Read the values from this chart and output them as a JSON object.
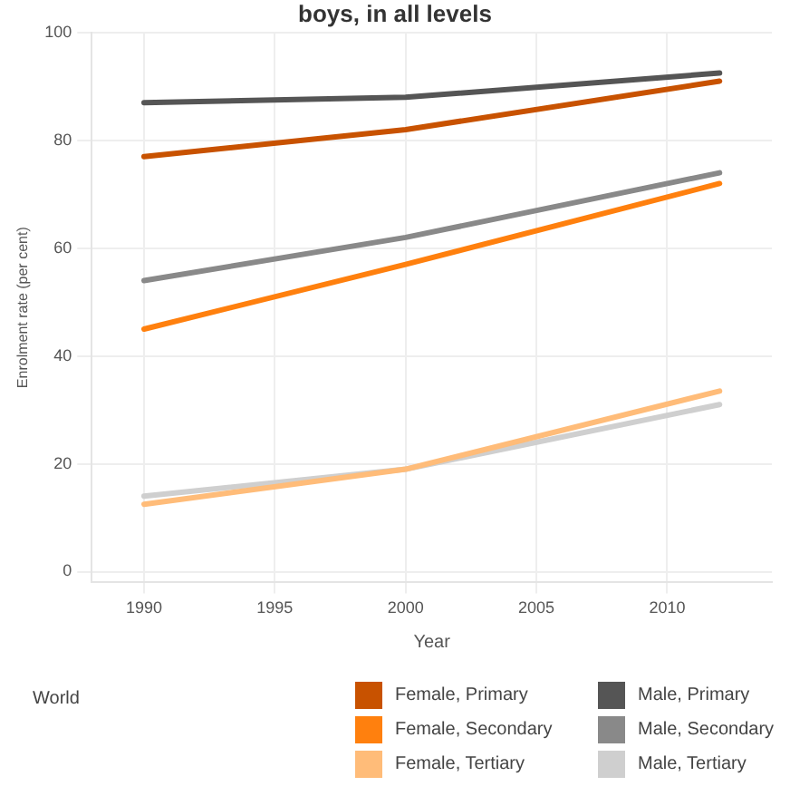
{
  "chart_data": {
    "type": "line",
    "title": "boys, in all levels",
    "xlabel": "Year",
    "ylabel": "Enrolment rate (per cent)",
    "legend_title": "World",
    "x": [
      1990,
      2000,
      2012
    ],
    "xlim": [
      1988,
      2014
    ],
    "xticks": [
      1990,
      1995,
      2000,
      2005,
      2010
    ],
    "ylim": [
      -2,
      100
    ],
    "yticks": [
      0,
      20,
      40,
      60,
      80,
      100
    ],
    "grid": true,
    "legend": "bottom",
    "marker": "none",
    "line_style": "solid",
    "series": [
      {
        "name": "Female, Primary",
        "color": "#c85200",
        "values": [
          77,
          82,
          91
        ]
      },
      {
        "name": "Male, Primary",
        "color": "#555555",
        "values": [
          87,
          88,
          92.5
        ]
      },
      {
        "name": "Female, Secondary",
        "color": "#ff800e",
        "values": [
          45,
          57,
          72
        ]
      },
      {
        "name": "Male, Secondary",
        "color": "#898989",
        "values": [
          54,
          62,
          74
        ]
      },
      {
        "name": "Female, Tertiary",
        "color": "#ffbc79",
        "values": [
          12.5,
          19,
          33.5
        ]
      },
      {
        "name": "Male, Tertiary",
        "color": "#cfcfcf",
        "values": [
          14,
          19,
          31
        ]
      }
    ]
  }
}
